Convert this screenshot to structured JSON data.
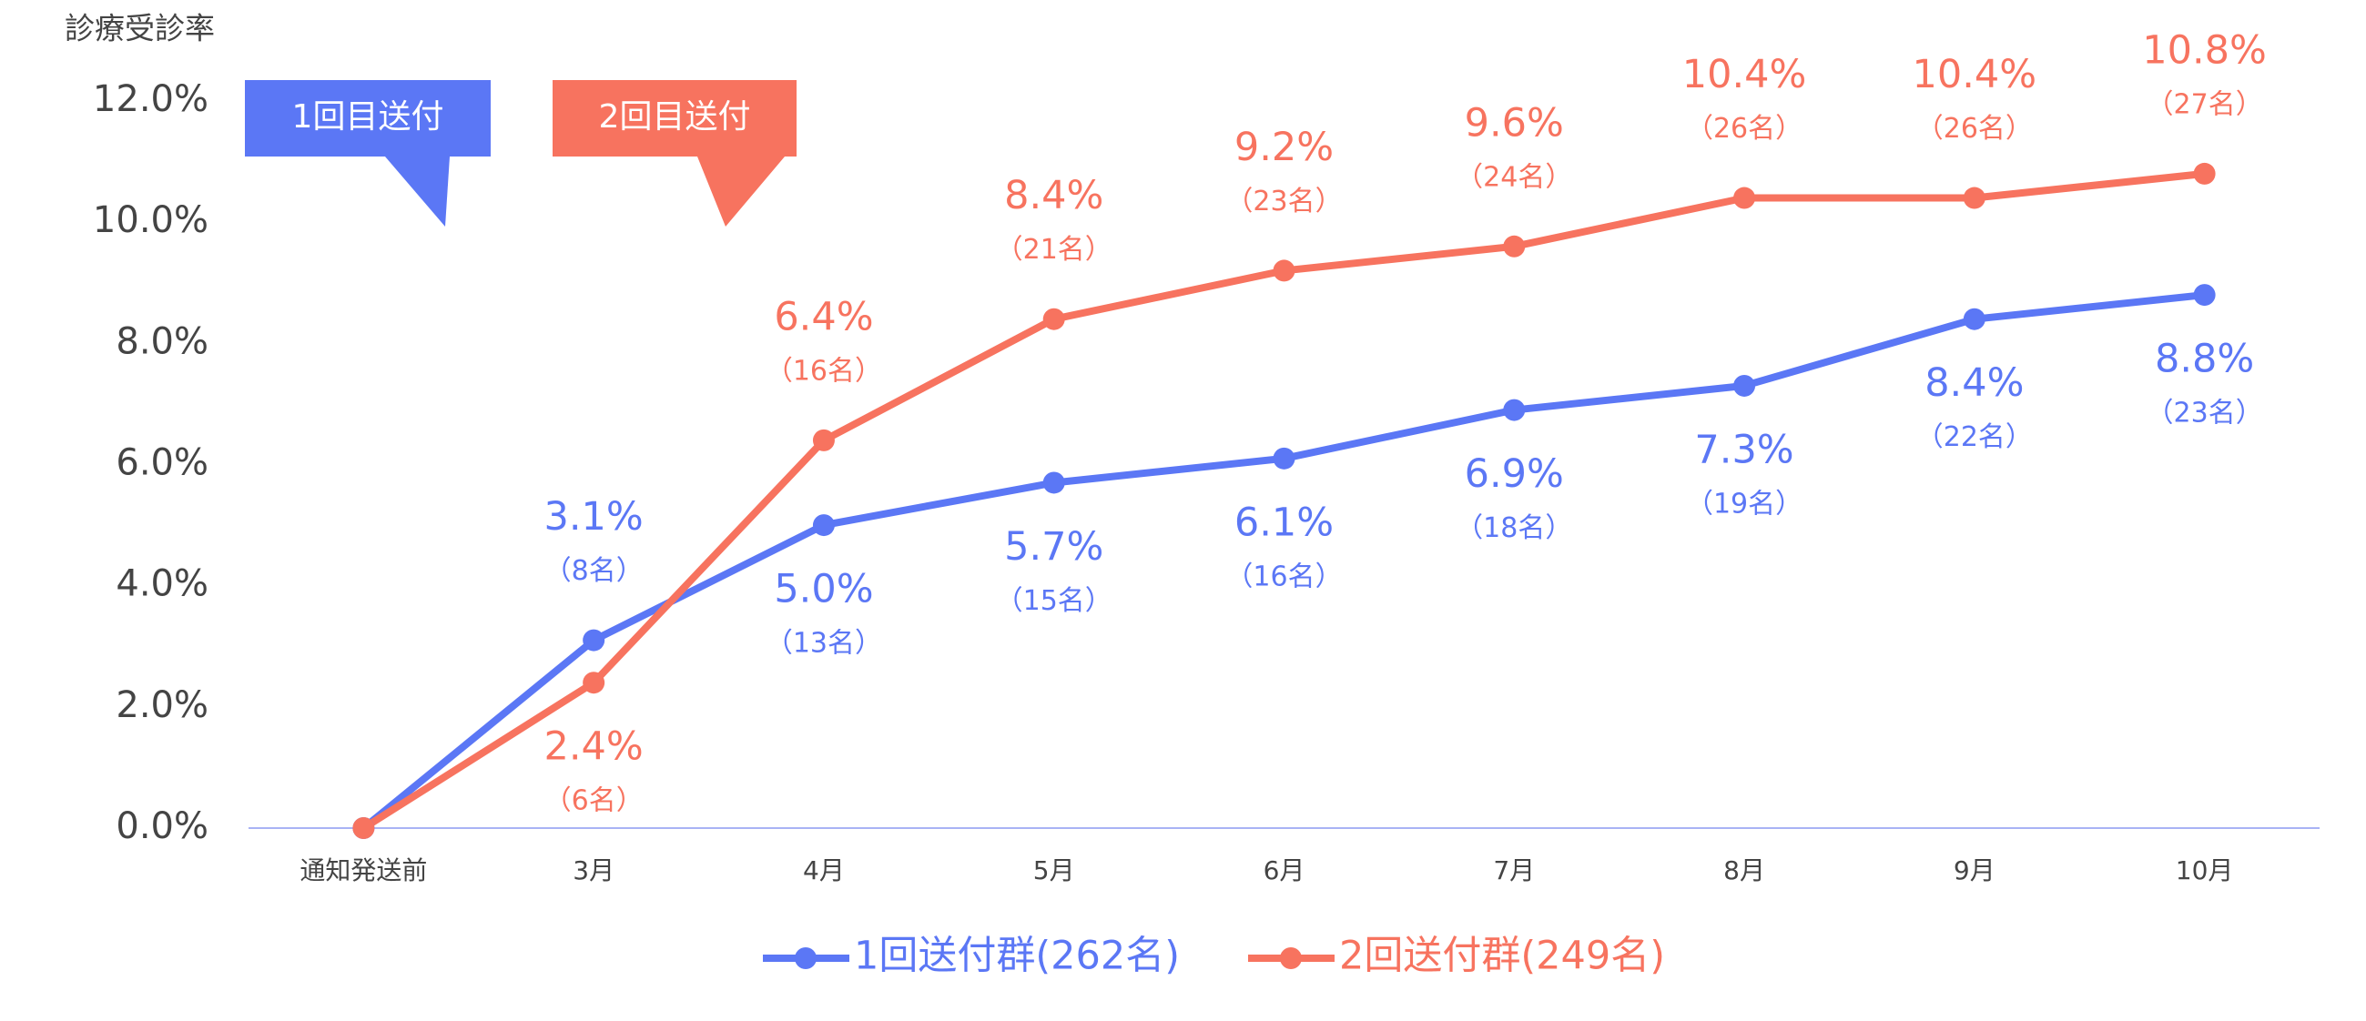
{
  "chart_data": {
    "type": "line",
    "y_label": "診療受診率",
    "categories": [
      "通知発送前",
      "3月",
      "4月",
      "5月",
      "6月",
      "7月",
      "8月",
      "9月",
      "10月"
    ],
    "series": [
      {
        "name": "1回送付群(262名)",
        "color": "#5b77f5",
        "values": [
          0,
          3.1,
          5.0,
          5.7,
          6.1,
          6.9,
          7.3,
          8.4,
          8.8
        ],
        "value_labels": [
          null,
          "3.1%",
          "5.0%",
          "5.7%",
          "6.1%",
          "6.9%",
          "7.3%",
          "8.4%",
          "8.8%"
        ],
        "count_labels": [
          null,
          "（8名）",
          "（13名）",
          "（15名）",
          "（16名）",
          "（18名）",
          "（19名）",
          "（22名）",
          "（23名）"
        ]
      },
      {
        "name": "2回送付群(249名)",
        "color": "#f7735f",
        "values": [
          0,
          2.4,
          6.4,
          8.4,
          9.2,
          9.6,
          10.4,
          10.4,
          10.8
        ],
        "value_labels": [
          null,
          "2.4%",
          "6.4%",
          "8.4%",
          "9.2%",
          "9.6%",
          "10.4%",
          "10.4%",
          "10.8%"
        ],
        "count_labels": [
          null,
          "（6名）",
          "（16名）",
          "（21名）",
          "（23名）",
          "（24名）",
          "（26名）",
          "（26名）",
          "（27名）"
        ]
      }
    ],
    "ylim": [
      0,
      12
    ],
    "yticks": [
      {
        "value": 0,
        "label": "0.0%"
      },
      {
        "value": 2,
        "label": "2.0%"
      },
      {
        "value": 4,
        "label": "4.0%"
      },
      {
        "value": 6,
        "label": "6.0%"
      },
      {
        "value": 8,
        "label": "8.0%"
      },
      {
        "value": 10,
        "label": "10.0%"
      },
      {
        "value": 12,
        "label": "12.0%"
      }
    ],
    "annotations": [
      {
        "text": "1回目送付",
        "color": "#5b77f5"
      },
      {
        "text": "2回目送付",
        "color": "#f7735f"
      }
    ],
    "legend": "bottom"
  }
}
